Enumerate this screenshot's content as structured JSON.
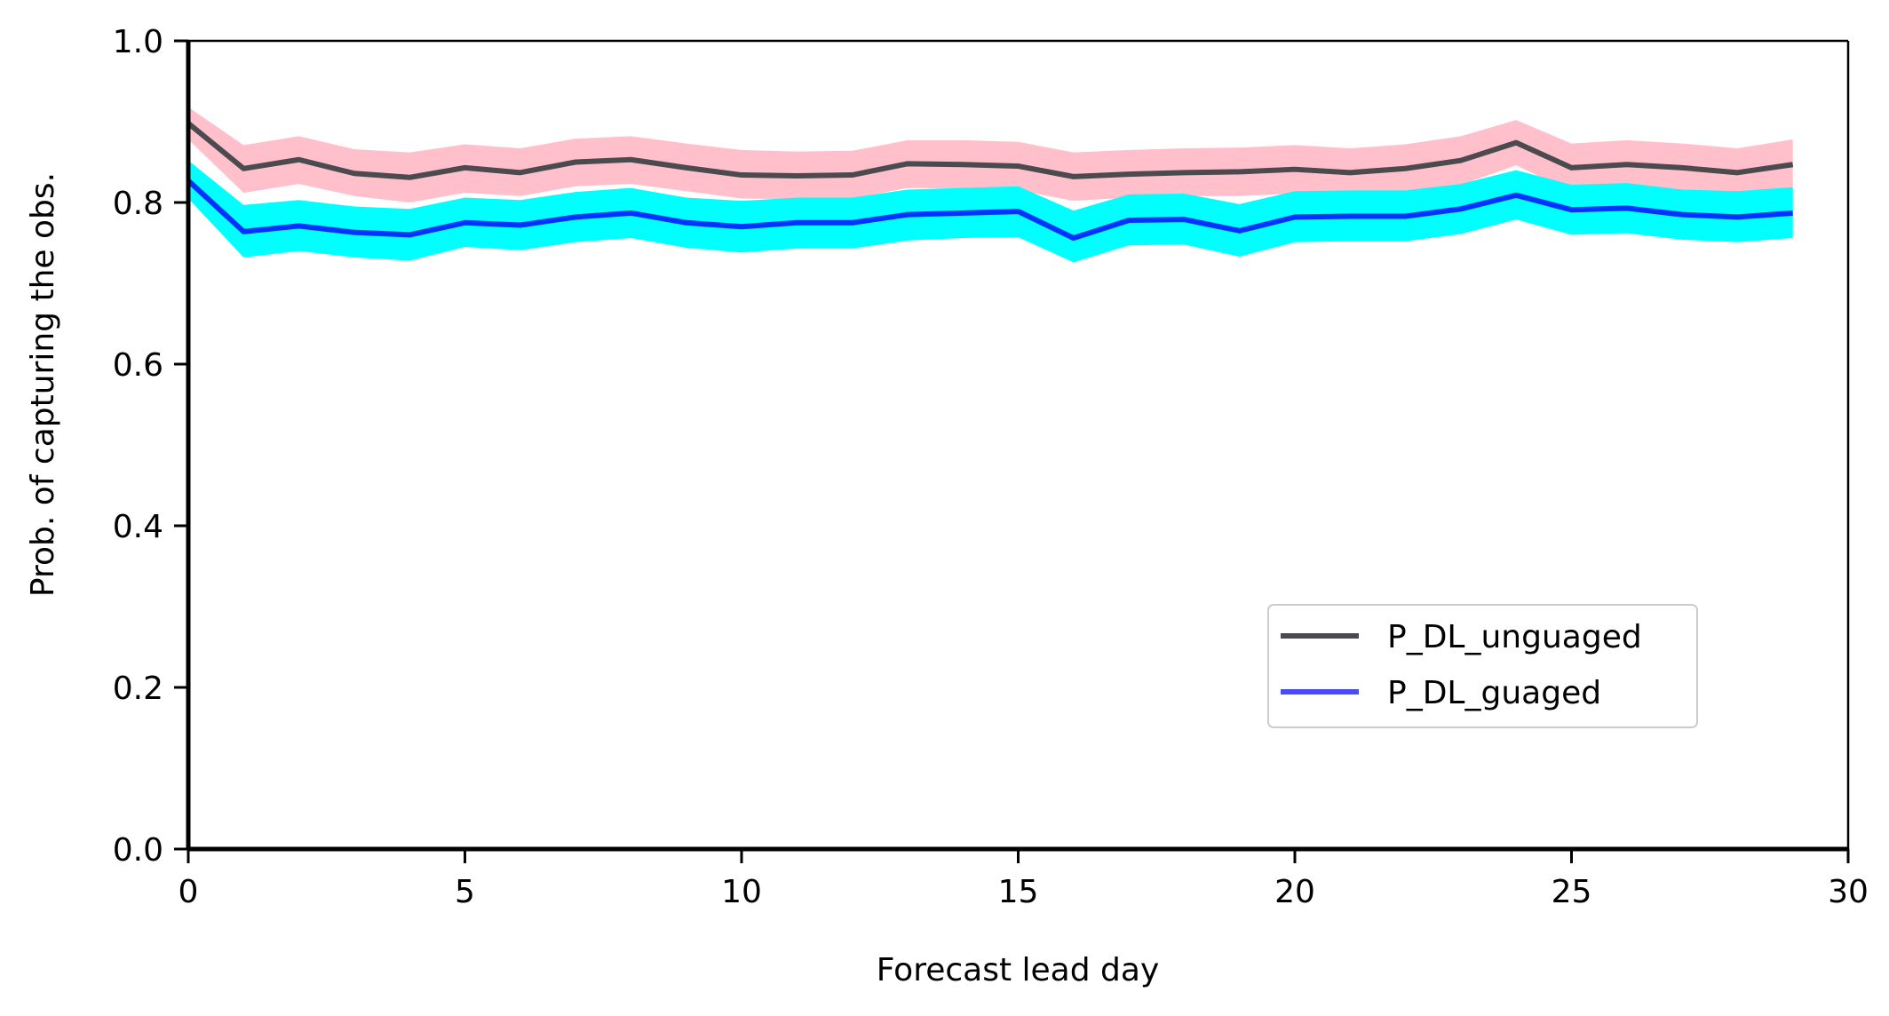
{
  "chart_data": {
    "type": "line",
    "title": "",
    "xlabel": "Forecast lead day",
    "ylabel": "Prob. of capturing the obs.",
    "xlim": [
      0,
      30
    ],
    "ylim": [
      0.0,
      1.0
    ],
    "xticks": [
      0,
      5,
      10,
      15,
      20,
      25,
      30
    ],
    "yticks": [
      0.0,
      0.2,
      0.4,
      0.6,
      0.8,
      1.0
    ],
    "xtick_labels": [
      "0",
      "5",
      "10",
      "15",
      "20",
      "25",
      "30"
    ],
    "ytick_labels": [
      "0.0",
      "0.2",
      "0.4",
      "0.6",
      "0.8",
      "1.0"
    ],
    "grid": false,
    "legend_position": "lower-right",
    "x": [
      0,
      1,
      2,
      3,
      4,
      5,
      6,
      7,
      8,
      9,
      10,
      11,
      12,
      13,
      14,
      15,
      16,
      17,
      18,
      19,
      20,
      21,
      22,
      23,
      24,
      25,
      26,
      27,
      28,
      29
    ],
    "series": [
      {
        "name": "P_DL_unguaged",
        "color": "#4a4a4f",
        "band_color": "#ffc0cb",
        "values": [
          0.898,
          0.842,
          0.853,
          0.836,
          0.831,
          0.843,
          0.837,
          0.85,
          0.853,
          0.843,
          0.834,
          0.833,
          0.834,
          0.848,
          0.847,
          0.845,
          0.832,
          0.835,
          0.837,
          0.838,
          0.841,
          0.837,
          0.842,
          0.852,
          0.874,
          0.843,
          0.847,
          0.843,
          0.837,
          0.847
        ],
        "lower": [
          0.878,
          0.812,
          0.823,
          0.808,
          0.8,
          0.812,
          0.808,
          0.82,
          0.823,
          0.814,
          0.805,
          0.804,
          0.805,
          0.818,
          0.817,
          0.815,
          0.802,
          0.806,
          0.808,
          0.808,
          0.811,
          0.808,
          0.812,
          0.822,
          0.846,
          0.813,
          0.817,
          0.812,
          0.806,
          0.816
        ],
        "upper": [
          0.918,
          0.871,
          0.882,
          0.866,
          0.862,
          0.872,
          0.867,
          0.879,
          0.882,
          0.873,
          0.865,
          0.863,
          0.864,
          0.877,
          0.877,
          0.875,
          0.862,
          0.865,
          0.867,
          0.868,
          0.871,
          0.867,
          0.872,
          0.882,
          0.902,
          0.873,
          0.877,
          0.873,
          0.867,
          0.878
        ]
      },
      {
        "name": "P_DL_guaged",
        "color": "#0033ff",
        "band_color": "#00ffff",
        "values": [
          0.827,
          0.764,
          0.771,
          0.763,
          0.76,
          0.775,
          0.772,
          0.782,
          0.787,
          0.775,
          0.77,
          0.775,
          0.775,
          0.785,
          0.787,
          0.789,
          0.756,
          0.778,
          0.779,
          0.765,
          0.782,
          0.783,
          0.783,
          0.792,
          0.809,
          0.791,
          0.793,
          0.785,
          0.782,
          0.787
        ],
        "lower": [
          0.805,
          0.732,
          0.74,
          0.732,
          0.728,
          0.745,
          0.741,
          0.751,
          0.756,
          0.744,
          0.738,
          0.743,
          0.743,
          0.753,
          0.756,
          0.757,
          0.726,
          0.747,
          0.748,
          0.733,
          0.751,
          0.752,
          0.752,
          0.761,
          0.779,
          0.76,
          0.762,
          0.754,
          0.751,
          0.756
        ],
        "upper": [
          0.852,
          0.797,
          0.803,
          0.795,
          0.792,
          0.806,
          0.803,
          0.813,
          0.818,
          0.806,
          0.802,
          0.806,
          0.806,
          0.816,
          0.818,
          0.82,
          0.79,
          0.81,
          0.811,
          0.798,
          0.814,
          0.815,
          0.815,
          0.823,
          0.84,
          0.822,
          0.824,
          0.816,
          0.814,
          0.819
        ]
      }
    ]
  }
}
